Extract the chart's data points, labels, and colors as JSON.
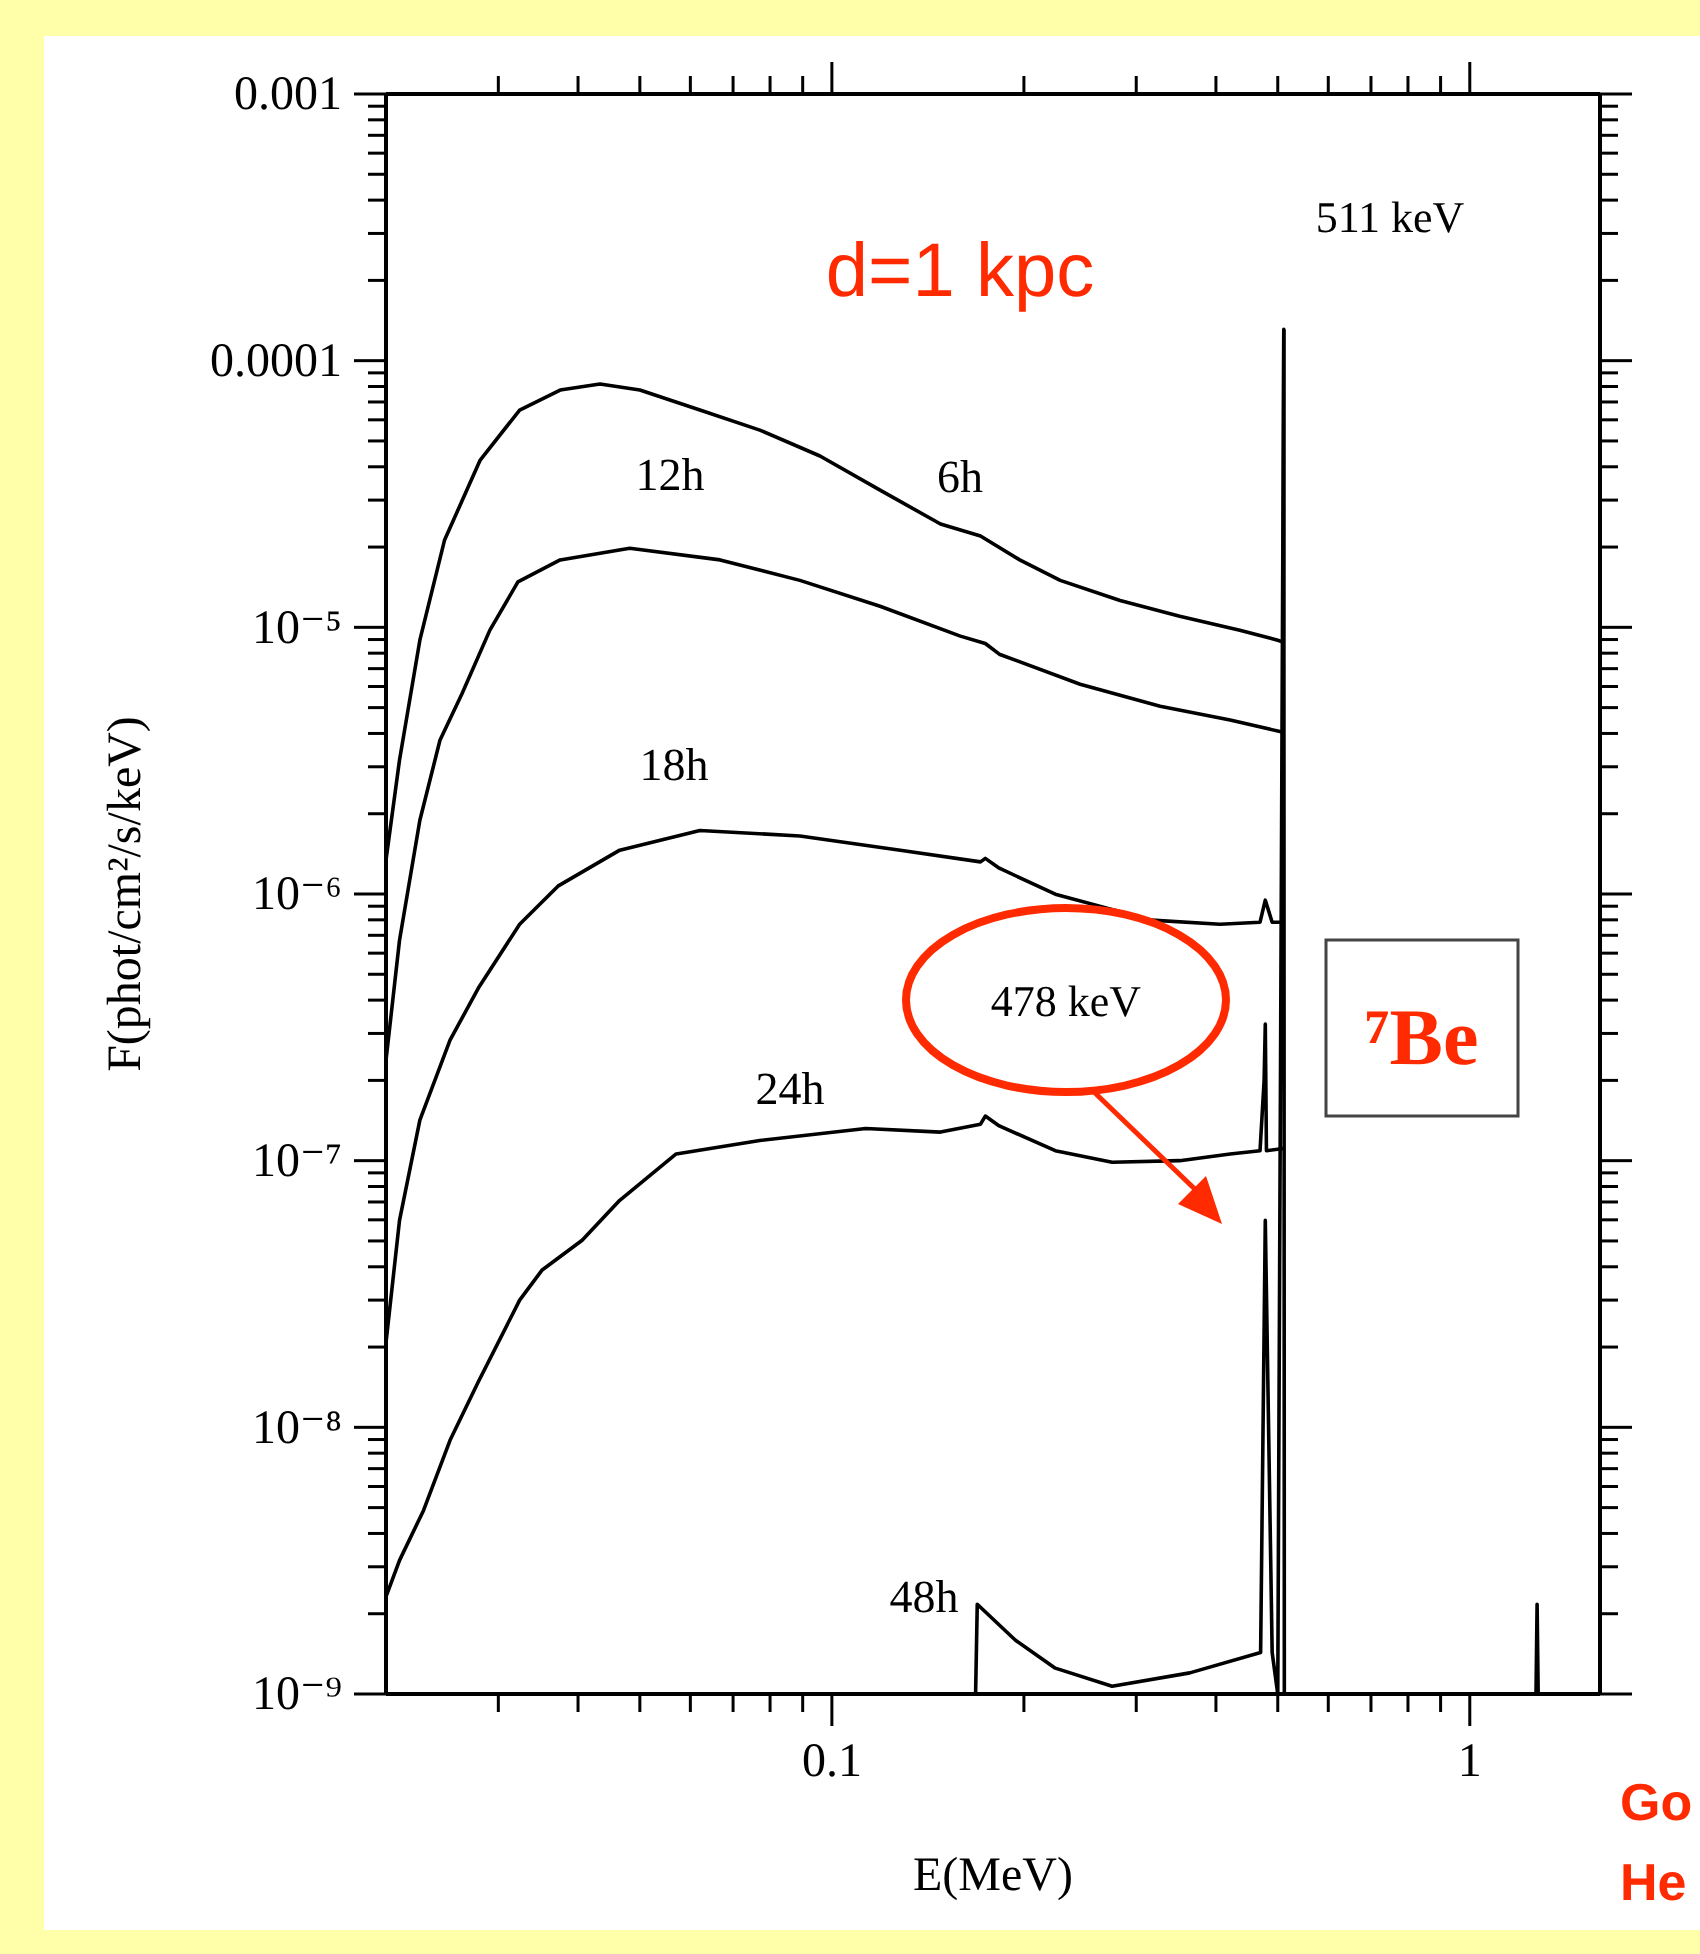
{
  "chart_data": {
    "type": "line",
    "xlabel": "E(MeV)",
    "ylabel": "F(phot/cm²/s/keV)",
    "log": "xy",
    "xlim": [
      0.02,
      1.6
    ],
    "ylim": [
      1e-09,
      0.001
    ],
    "xticks": [
      {
        "value": 0.03,
        "label": null
      },
      {
        "value": 0.04,
        "label": null
      },
      {
        "value": 0.05,
        "label": null
      },
      {
        "value": 0.06,
        "label": null
      },
      {
        "value": 0.07,
        "label": null
      },
      {
        "value": 0.08,
        "label": null
      },
      {
        "value": 0.09,
        "label": null
      },
      {
        "value": 0.1,
        "label": "0.1"
      },
      {
        "value": 0.2,
        "label": null
      },
      {
        "value": 0.3,
        "label": null
      },
      {
        "value": 0.4,
        "label": null
      },
      {
        "value": 0.5,
        "label": null
      },
      {
        "value": 0.6,
        "label": null
      },
      {
        "value": 0.7,
        "label": null
      },
      {
        "value": 0.8,
        "label": null
      },
      {
        "value": 0.9,
        "label": null
      },
      {
        "value": 1,
        "label": "1"
      }
    ],
    "yticks": [
      {
        "value": 1e-09,
        "label": "10⁻⁹"
      },
      {
        "value": 2e-09,
        "label": null
      },
      {
        "value": 3e-09,
        "label": null
      },
      {
        "value": 4e-09,
        "label": null
      },
      {
        "value": 5e-09,
        "label": null
      },
      {
        "value": 6e-09,
        "label": null
      },
      {
        "value": 7e-09,
        "label": null
      },
      {
        "value": 8e-09,
        "label": null
      },
      {
        "value": 9e-09,
        "label": null
      },
      {
        "value": 1e-08,
        "label": "10⁻⁸"
      },
      {
        "value": 2e-08,
        "label": null
      },
      {
        "value": 3e-08,
        "label": null
      },
      {
        "value": 4e-08,
        "label": null
      },
      {
        "value": 5e-08,
        "label": null
      },
      {
        "value": 6e-08,
        "label": null
      },
      {
        "value": 7e-08,
        "label": null
      },
      {
        "value": 8e-08,
        "label": null
      },
      {
        "value": 9e-08,
        "label": null
      },
      {
        "value": 1e-07,
        "label": "10⁻⁷"
      },
      {
        "value": 2e-07,
        "label": null
      },
      {
        "value": 3e-07,
        "label": null
      },
      {
        "value": 4e-07,
        "label": null
      },
      {
        "value": 5e-07,
        "label": null
      },
      {
        "value": 6e-07,
        "label": null
      },
      {
        "value": 7e-07,
        "label": null
      },
      {
        "value": 8e-07,
        "label": null
      },
      {
        "value": 9e-07,
        "label": null
      },
      {
        "value": 1e-06,
        "label": "10⁻⁶"
      },
      {
        "value": 2e-06,
        "label": null
      },
      {
        "value": 3e-06,
        "label": null
      },
      {
        "value": 4e-06,
        "label": null
      },
      {
        "value": 5e-06,
        "label": null
      },
      {
        "value": 6e-06,
        "label": null
      },
      {
        "value": 7e-06,
        "label": null
      },
      {
        "value": 8e-06,
        "label": null
      },
      {
        "value": 9e-06,
        "label": null
      },
      {
        "value": 1e-05,
        "label": "10⁻⁵"
      },
      {
        "value": 2e-05,
        "label": null
      },
      {
        "value": 3e-05,
        "label": null
      },
      {
        "value": 4e-05,
        "label": null
      },
      {
        "value": 5e-05,
        "label": null
      },
      {
        "value": 6e-05,
        "label": null
      },
      {
        "value": 7e-05,
        "label": null
      },
      {
        "value": 8e-05,
        "label": null
      },
      {
        "value": 9e-05,
        "label": null
      },
      {
        "value": 0.0001,
        "label": "0.0001"
      },
      {
        "value": 0.0002,
        "label": null
      },
      {
        "value": 0.0003,
        "label": null
      },
      {
        "value": 0.0004,
        "label": null
      },
      {
        "value": 0.0005,
        "label": null
      },
      {
        "value": 0.0006,
        "label": null
      },
      {
        "value": 0.0007,
        "label": null
      },
      {
        "value": 0.0008,
        "label": null
      },
      {
        "value": 0.0009,
        "label": null
      },
      {
        "value": 0.001,
        "label": "0.001"
      }
    ],
    "grid": false,
    "marker": "none",
    "line_style": "solid",
    "series": [
      {
        "name": "6h",
        "color": "#000000",
        "x": [
          0.02,
          0.021,
          0.0226,
          0.0247,
          0.0281,
          0.0324,
          0.0375,
          0.0433,
          0.05,
          0.0621,
          0.0771,
          0.0958,
          0.119,
          0.148,
          0.171,
          0.197,
          0.228,
          0.283,
          0.351,
          0.436,
          0.5,
          0.51,
          0.511
        ],
        "values": [
          1.34e-06,
          3.18e-06,
          8.95e-06,
          2.12e-05,
          4.24e-05,
          6.53e-05,
          7.76e-05,
          8.17e-05,
          7.76e-05,
          6.53e-05,
          5.49e-05,
          4.39e-05,
          3.27e-05,
          2.44e-05,
          2.2e-05,
          1.79e-05,
          1.5e-05,
          1.26e-05,
          1.1e-05,
          9.76e-06,
          8.95e-06,
          8.8e-06,
          0.000131
        ]
      },
      {
        "name": "12h",
        "color": "#000000",
        "x": [
          0.02,
          0.021,
          0.0226,
          0.0243,
          0.0263,
          0.0291,
          0.0322,
          0.0375,
          0.0482,
          0.0668,
          0.0891,
          0.119,
          0.159,
          0.174,
          0.183,
          0.245,
          0.327,
          0.421,
          0.51
        ],
        "values": [
          2.38e-07,
          6.71e-07,
          1.89e-06,
          3.77e-06,
          5.62e-06,
          9.76e-06,
          1.48e-05,
          1.79e-05,
          1.98e-05,
          1.79e-05,
          1.5e-05,
          1.2e-05,
          9.27e-06,
          8.7e-06,
          7.93e-06,
          6.12e-06,
          5.06e-06,
          4.49e-06,
          4.04e-06
        ]
      },
      {
        "name": "18h",
        "color": "#000000",
        "x": [
          0.02,
          0.021,
          0.0226,
          0.0252,
          0.0279,
          0.0324,
          0.0372,
          0.0465,
          0.0621,
          0.0891,
          0.128,
          0.171,
          0.174,
          0.183,
          0.224,
          0.317,
          0.406,
          0.469,
          0.478,
          0.49,
          0.51
        ],
        "values": [
          2.08e-08,
          5.97e-08,
          1.42e-07,
          2.83e-07,
          4.43e-07,
          7.7e-07,
          1.07e-06,
          1.46e-06,
          1.73e-06,
          1.65e-06,
          1.46e-06,
          1.32e-06,
          1.36e-06,
          1.25e-06,
          9.98e-07,
          7.98e-07,
          7.7e-07,
          7.84e-07,
          9.48e-07,
          7.84e-07,
          7.84e-07
        ]
      },
      {
        "name": "24h",
        "color": "#000000",
        "x": [
          0.02,
          0.021,
          0.0229,
          0.0252,
          0.0279,
          0.0324,
          0.0351,
          0.0406,
          0.0465,
          0.057,
          0.0771,
          0.113,
          0.148,
          0.171,
          0.174,
          0.183,
          0.224,
          0.275,
          0.351,
          0.421,
          0.469,
          0.476,
          0.478,
          0.48,
          0.51
        ],
        "values": [
          2.32e-09,
          3.17e-09,
          4.88e-09,
          8.94e-09,
          1.48e-08,
          3e-08,
          3.88e-08,
          5.03e-08,
          7.1e-08,
          1.06e-07,
          1.19e-07,
          1.32e-07,
          1.28e-07,
          1.37e-07,
          1.47e-07,
          1.35e-07,
          1.09e-07,
          9.86e-08,
          1e-07,
          1.06e-07,
          1.09e-07,
          2e-07,
          3.25e-07,
          1.09e-07,
          1.11e-07
        ]
      },
      {
        "name": "48h",
        "color": "#000000",
        "x": [
          0.168,
          0.169,
          0.194,
          0.224,
          0.275,
          0.364,
          0.47,
          0.478,
          0.49,
          0.5,
          0.511,
          0.512,
          1.27,
          1.275,
          1.28
        ],
        "values": [
          1e-09,
          2.17e-09,
          1.59e-09,
          1.25e-09,
          1.07e-09,
          1.2e-09,
          1.43e-09,
          5.97e-08,
          1.43e-09,
          1e-09,
          0.000131,
          1e-09,
          1e-09,
          2.17e-09,
          1e-09
        ]
      }
    ],
    "annotations": [
      "d=1 kpc",
      "511 keV",
      "478 keV",
      "⁷Be",
      "Go",
      "He"
    ]
  }
}
